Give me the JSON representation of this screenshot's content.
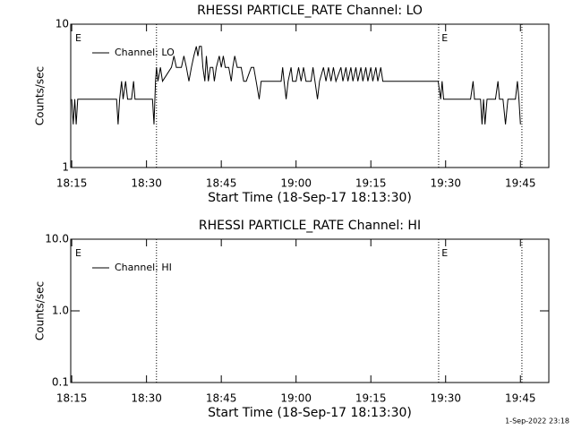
{
  "chart_data": [
    {
      "type": "line",
      "title": "RHESSI PARTICLE_RATE Channel: LO",
      "xlabel": "Start Time (18-Sep-17 18:13:30)",
      "ylabel": "Counts/sec",
      "log_y": true,
      "legend": "upper left",
      "xlim": [
        1094.8,
        1190.7
      ],
      "ylim": [
        1,
        10
      ],
      "yticks": [
        1,
        10
      ],
      "xticks": [
        {
          "value": 1095,
          "label": "18:15"
        },
        {
          "value": 1110,
          "label": "18:30"
        },
        {
          "value": 1125,
          "label": "18:45"
        },
        {
          "value": 1140,
          "label": "19:00"
        },
        {
          "value": 1155,
          "label": "19:15"
        },
        {
          "value": 1170,
          "label": "19:30"
        },
        {
          "value": 1185,
          "label": "19:45"
        }
      ],
      "event_lines": [
        1112.0,
        1168.6,
        1185.3
      ],
      "annotations": [
        {
          "text": "E",
          "x": 1095.7
        },
        {
          "text": "E",
          "x": 1169.2
        }
      ],
      "x": [
        1095.0,
        1095.3,
        1095.6,
        1095.9,
        1096.2,
        1104.0,
        1104.3,
        1104.6,
        1105.0,
        1105.3,
        1105.8,
        1106.2,
        1107.0,
        1107.4,
        1107.7,
        1111.2,
        1111.5,
        1111.8,
        1112.0,
        1112.3,
        1112.8,
        1113.2,
        1115.0,
        1115.5,
        1116.0,
        1117.0,
        1117.5,
        1118.0,
        1118.5,
        1119.0,
        1119.5,
        1120.0,
        1120.3,
        1120.6,
        1121.0,
        1121.3,
        1121.7,
        1122.0,
        1122.4,
        1122.8,
        1123.3,
        1123.6,
        1124.0,
        1124.6,
        1125.0,
        1125.4,
        1125.8,
        1126.5,
        1127.0,
        1127.3,
        1127.7,
        1128.2,
        1129.0,
        1129.5,
        1130.0,
        1131.0,
        1131.5,
        1132.0,
        1132.6,
        1133.0,
        1137.0,
        1137.3,
        1137.6,
        1138.0,
        1138.4,
        1139.0,
        1139.3,
        1140.0,
        1140.5,
        1141.0,
        1141.5,
        1142.0,
        1143.0,
        1143.4,
        1143.8,
        1144.3,
        1144.7,
        1145.5,
        1146.0,
        1146.5,
        1147.0,
        1147.5,
        1148.0,
        1149.0,
        1149.4,
        1150.0,
        1150.4,
        1151.0,
        1151.4,
        1152.0,
        1152.4,
        1153.0,
        1153.4,
        1154.0,
        1154.4,
        1155.0,
        1155.4,
        1156.0,
        1156.4,
        1157.0,
        1157.4,
        1168.5,
        1169.0,
        1169.3,
        1169.6,
        1175.0,
        1175.5,
        1175.8,
        1177.0,
        1177.3,
        1177.6,
        1177.9,
        1178.3,
        1180.0,
        1180.5,
        1180.8,
        1181.5,
        1182.0,
        1182.5,
        1184.0,
        1184.4,
        1184.7,
        1185.0
      ],
      "series": [
        {
          "name": "Channel: LO",
          "color": "#000000",
          "values": [
            3,
            2,
            3,
            2,
            3,
            3,
            2,
            3,
            4,
            3,
            4,
            3,
            3,
            4,
            3,
            3,
            2,
            4,
            5,
            4,
            5,
            4,
            5,
            6,
            5,
            5,
            6,
            5,
            4,
            5,
            6,
            7,
            6,
            7,
            7,
            5,
            4,
            6,
            4,
            5,
            5,
            4,
            5,
            6,
            5,
            6,
            5,
            5,
            4,
            5,
            6,
            5,
            5,
            4,
            4,
            5,
            5,
            4,
            3,
            4,
            4,
            5,
            4,
            3,
            4,
            5,
            4,
            4,
            5,
            4,
            5,
            4,
            4,
            5,
            4,
            3,
            4,
            5,
            4,
            5,
            4,
            5,
            4,
            5,
            4,
            5,
            4,
            5,
            4,
            5,
            4,
            5,
            4,
            5,
            4,
            5,
            4,
            5,
            4,
            5,
            4,
            4,
            3,
            4,
            3,
            3,
            4,
            3,
            3,
            2,
            3,
            2,
            3,
            3,
            4,
            3,
            3,
            2,
            3,
            3,
            4,
            3,
            2
          ]
        }
      ]
    },
    {
      "type": "line",
      "title": "RHESSI PARTICLE_RATE Channel: HI",
      "xlabel": "Start Time (18-Sep-17 18:13:30)",
      "ylabel": "Counts/sec",
      "log_y": true,
      "legend": "upper left",
      "xlim": [
        1094.8,
        1190.7
      ],
      "ylim": [
        0.1,
        10
      ],
      "yticks": [
        0.1,
        {
          "value": 1,
          "label": "1.0"
        },
        {
          "value": 10,
          "label": "10.0"
        }
      ],
      "xticks": [
        {
          "value": 1095,
          "label": "18:15"
        },
        {
          "value": 1110,
          "label": "18:30"
        },
        {
          "value": 1125,
          "label": "18:45"
        },
        {
          "value": 1140,
          "label": "19:00"
        },
        {
          "value": 1155,
          "label": "19:15"
        },
        {
          "value": 1170,
          "label": "19:30"
        },
        {
          "value": 1185,
          "label": "19:45"
        }
      ],
      "event_lines": [
        1112.0,
        1168.6,
        1185.3
      ],
      "annotations": [
        {
          "text": "E",
          "x": 1095.7
        },
        {
          "text": "E",
          "x": 1169.2
        }
      ],
      "x": [],
      "series": [
        {
          "name": "Channel: HI",
          "color": "#000000",
          "values": []
        }
      ]
    }
  ],
  "footer": "1-Sep-2022 23:18"
}
